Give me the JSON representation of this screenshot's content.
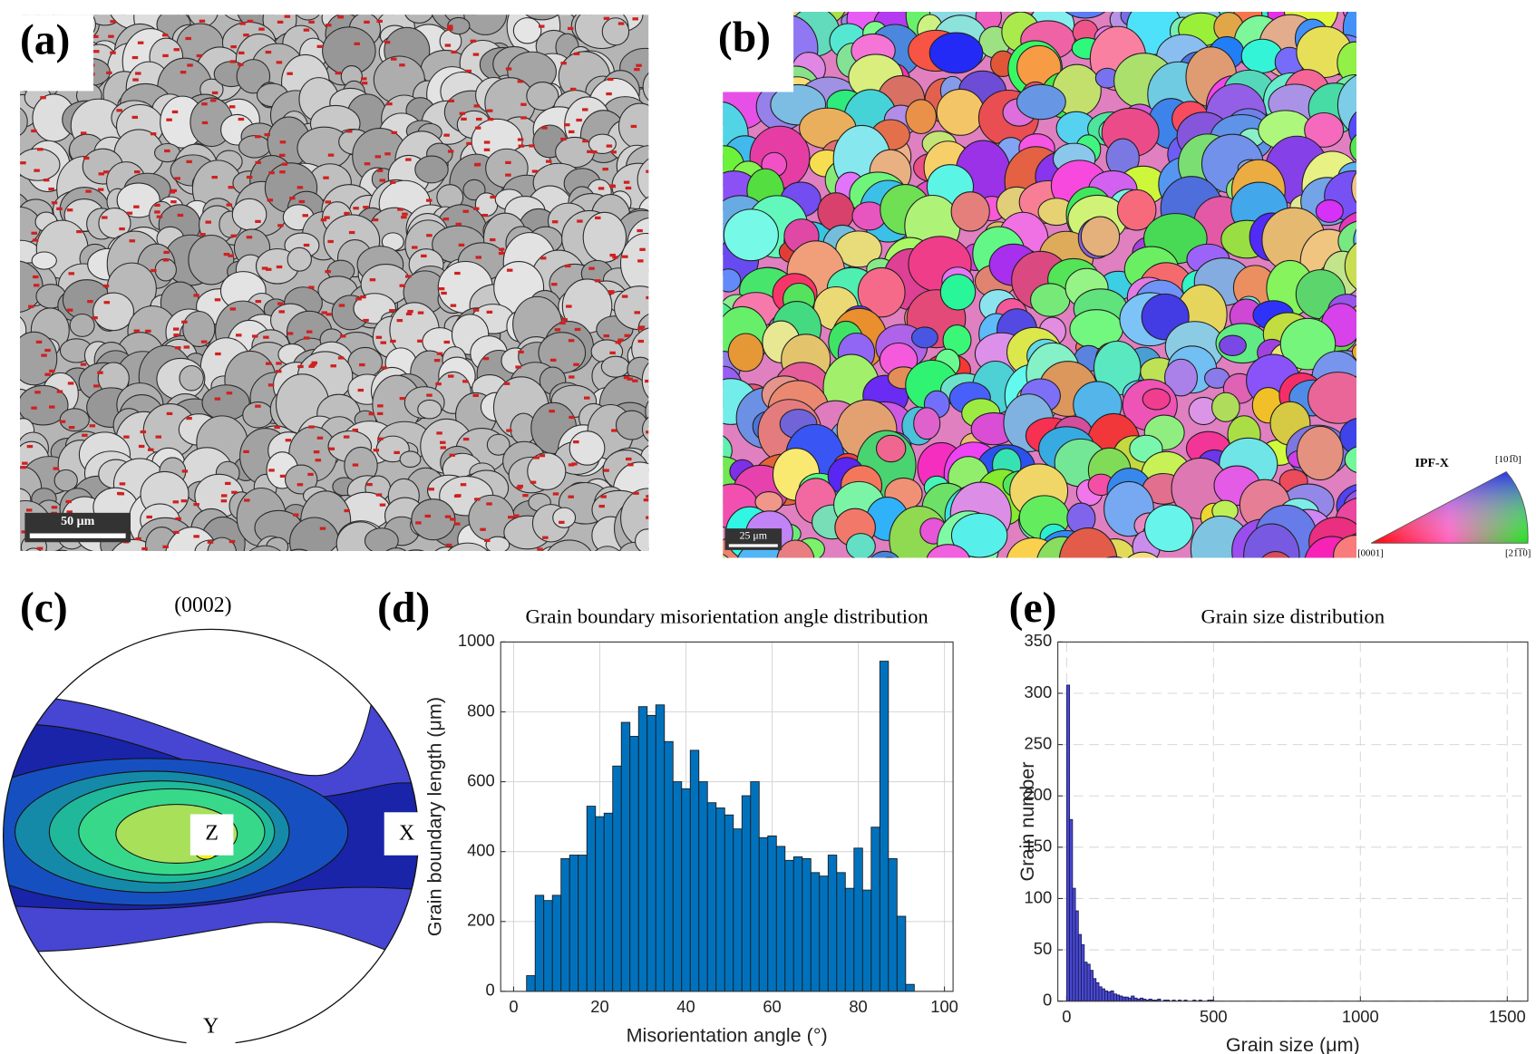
{
  "chart_data": [
    {
      "type": "micrograph",
      "label": "(a)",
      "scale_bar": "50 μm"
    },
    {
      "type": "ipf_map",
      "label": "(b)",
      "scale_bar": "25 μm",
      "legend_title": "IPF-X",
      "legend_labels": [
        "[0001]",
        "[101̅0]",
        "[21̅1̅0]"
      ]
    },
    {
      "type": "pole_figure",
      "label": "(c)",
      "title": "(0002)",
      "axis_labels": [
        "Z",
        "X",
        "Y"
      ]
    },
    {
      "type": "histogram",
      "label": "(d)",
      "title": "Grain boundary misorientation angle distribution",
      "xlabel": "Misorientation angle (°)",
      "ylabel": "Grain boundary length (μm)",
      "bins": [
        3,
        5,
        7,
        9,
        11,
        13,
        15,
        17,
        19,
        21,
        23,
        25,
        27,
        29,
        31,
        33,
        35,
        37,
        39,
        41,
        43,
        45,
        47,
        49,
        51,
        53,
        55,
        57,
        59,
        61,
        63,
        65,
        67,
        69,
        71,
        73,
        75,
        77,
        79,
        81,
        83,
        85,
        87,
        89,
        91,
        93
      ],
      "values": [
        45,
        275,
        260,
        275,
        380,
        390,
        390,
        530,
        500,
        510,
        645,
        770,
        730,
        815,
        790,
        820,
        715,
        600,
        580,
        690,
        600,
        540,
        525,
        505,
        465,
        560,
        600,
        440,
        445,
        415,
        375,
        385,
        380,
        340,
        330,
        390,
        340,
        295,
        410,
        290,
        470,
        945,
        380,
        215,
        20
      ],
      "color": "#0072bd",
      "edge_color": "#1a1a1a",
      "xlim": [
        -3,
        102
      ],
      "ylim": [
        0,
        1000
      ],
      "xticks": [
        0,
        20,
        40,
        60,
        80,
        100
      ],
      "yticks": [
        0,
        200,
        400,
        600,
        800,
        1000
      ],
      "grid": true,
      "grid_style": "solid"
    },
    {
      "type": "histogram",
      "label": "(e)",
      "title": "Grain size distribution",
      "xlabel": "Grain size (μm)",
      "ylabel": "Grain number",
      "bins": [
        0,
        10,
        20,
        30,
        40,
        50,
        60,
        70,
        80,
        90,
        100,
        110,
        120,
        130,
        140,
        150,
        160,
        170,
        180,
        190,
        200,
        210,
        220,
        230,
        240,
        250,
        260,
        270,
        280,
        290,
        300,
        310,
        320,
        330,
        340,
        350,
        360,
        370,
        380,
        390,
        400,
        410,
        420,
        430,
        440,
        450,
        460,
        470,
        480,
        490,
        500
      ],
      "values": [
        308,
        177,
        110,
        88,
        65,
        55,
        38,
        36,
        30,
        22,
        18,
        14,
        12,
        10,
        9,
        10,
        7,
        6,
        5,
        4,
        4,
        3,
        5,
        3,
        2,
        3,
        2,
        1,
        2,
        1,
        1,
        2,
        0,
        1,
        1,
        0,
        1,
        0,
        1,
        0,
        1,
        0,
        0,
        1,
        0,
        1,
        0,
        0,
        1,
        1
      ],
      "color": "#4a4ad0",
      "edge_color": "#1a1a60",
      "xlim": [
        -30,
        1570
      ],
      "ylim": [
        0,
        350
      ],
      "xticks": [
        0,
        500,
        1000,
        1500
      ],
      "yticks": [
        0,
        50,
        100,
        150,
        200,
        250,
        300,
        350
      ],
      "grid": true,
      "grid_style": "dashed"
    }
  ]
}
